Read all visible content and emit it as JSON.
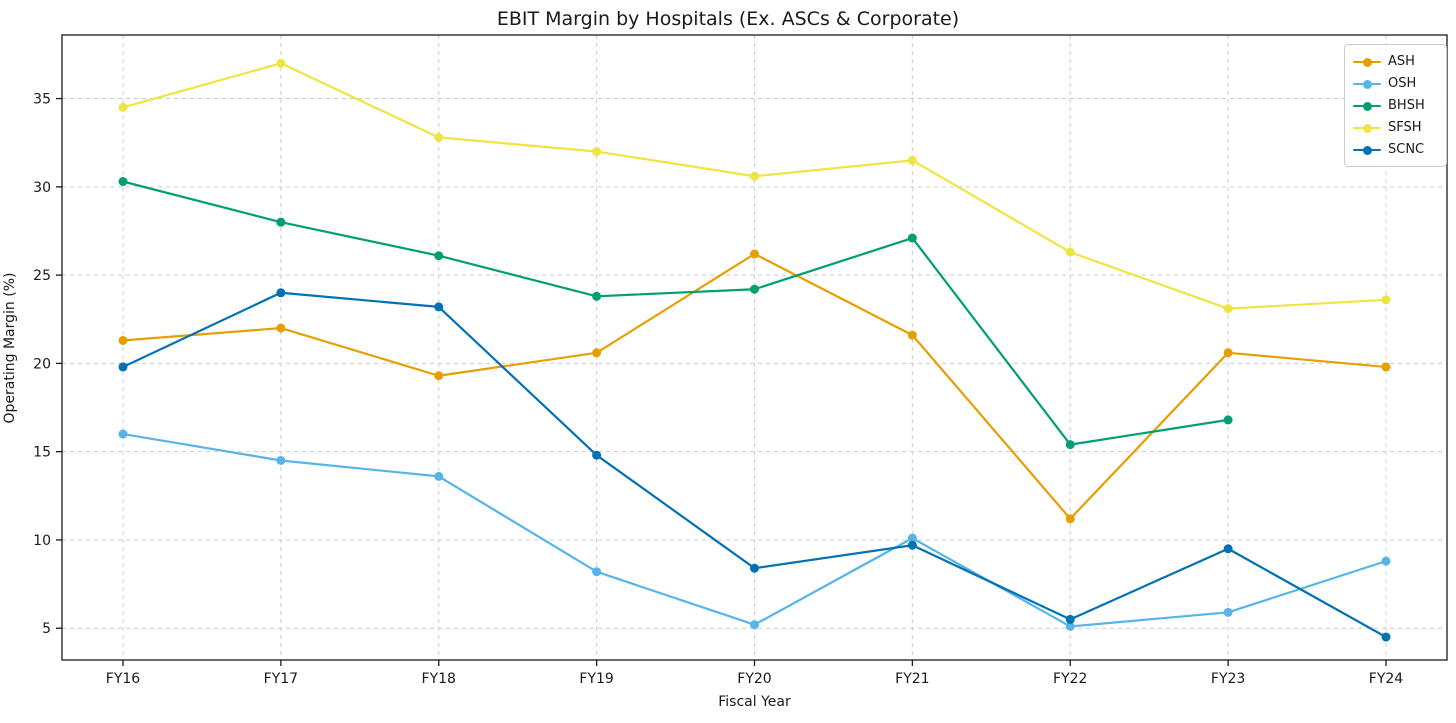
{
  "chart_data": {
    "type": "line",
    "title": "EBIT Margin by Hospitals (Ex. ASCs & Corporate)",
    "xlabel": "Fiscal Year",
    "ylabel": "Operating Margin (%)",
    "categories": [
      "FY16",
      "FY17",
      "FY18",
      "FY19",
      "FY20",
      "FY21",
      "FY22",
      "FY23",
      "FY24"
    ],
    "yticks": [
      5,
      10,
      15,
      20,
      25,
      30,
      35
    ],
    "ylim": [
      3.2,
      38.6
    ],
    "grid": true,
    "grid_style": "dashed",
    "legend_position": "upper right",
    "series": [
      {
        "name": "ASH",
        "color": "#E69F00",
        "values": [
          21.3,
          22.0,
          19.3,
          20.6,
          26.2,
          21.6,
          11.2,
          20.6,
          19.8
        ]
      },
      {
        "name": "OSH",
        "color": "#56B4E9",
        "values": [
          16.0,
          14.5,
          13.6,
          8.2,
          5.2,
          10.1,
          5.1,
          5.9,
          8.8
        ]
      },
      {
        "name": "BHSH",
        "color": "#009E73",
        "values": [
          30.3,
          28.0,
          26.1,
          23.8,
          24.2,
          27.1,
          15.4,
          16.8,
          null
        ]
      },
      {
        "name": "SFSH",
        "color": "#F0E442",
        "values": [
          34.5,
          37.0,
          32.8,
          32.0,
          30.6,
          31.5,
          26.3,
          23.1,
          23.6
        ]
      },
      {
        "name": "SCNC",
        "color": "#0072B2",
        "values": [
          19.8,
          24.0,
          23.2,
          14.8,
          8.4,
          9.7,
          5.5,
          9.5,
          4.5
        ]
      }
    ],
    "axis_color": "#1a1a1a",
    "gridline_color": "#cccccc"
  }
}
